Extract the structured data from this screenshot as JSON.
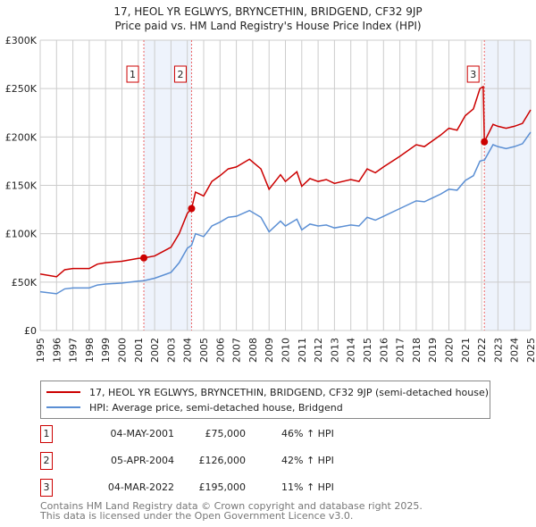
{
  "chart_data": {
    "type": "line",
    "title": "17, HEOL  YR   EGLWYS, BRYNCETHIN, BRIDGEND, CF32 9JP",
    "subtitle": "Price paid vs. HM Land Registry's House Price Index (HPI)",
    "ylim": [
      0,
      300000
    ],
    "xlim": [
      1995,
      2025
    ],
    "yticks": [
      {
        "v": 0,
        "label": "£0"
      },
      {
        "v": 50000,
        "label": "£50K"
      },
      {
        "v": 100000,
        "label": "£100K"
      },
      {
        "v": 150000,
        "label": "£150K"
      },
      {
        "v": 200000,
        "label": "£200K"
      },
      {
        "v": 250000,
        "label": "£250K"
      },
      {
        "v": 300000,
        "label": "£300K"
      }
    ],
    "xticks": [
      "1995",
      "1996",
      "1997",
      "1998",
      "1999",
      "2000",
      "2001",
      "2002",
      "2003",
      "2004",
      "2005",
      "2006",
      "2007",
      "2008",
      "2009",
      "2010",
      "2011",
      "2012",
      "2013",
      "2014",
      "2015",
      "2016",
      "2017",
      "2018",
      "2019",
      "2020",
      "2021",
      "2022",
      "2023",
      "2024",
      "2025"
    ],
    "grid": true,
    "x": [
      1995,
      1996,
      1996.5,
      1997,
      1998,
      1998.5,
      1999,
      2000,
      2001,
      2001.35,
      2002,
      2002.5,
      2003,
      2003.5,
      2004,
      2004.26,
      2004.5,
      2005,
      2005.5,
      2006,
      2006.5,
      2007,
      2007.8,
      2008.5,
      2009,
      2009.7,
      2010,
      2010.7,
      2011,
      2011.5,
      2012,
      2012.5,
      2013,
      2014,
      2014.5,
      2015,
      2015.5,
      2016,
      2017,
      2018,
      2018.5,
      2019,
      2019.5,
      2020,
      2020.5,
      2021,
      2021.5,
      2021.9,
      2022.1,
      2022.17,
      2022.7,
      2023,
      2023.5,
      2024,
      2024.5,
      2025
    ],
    "series": [
      {
        "name": "17, HEOL  YR   EGLWYS, BRYNCETHIN, BRIDGEND, CF32 9JP (semi-detached house)",
        "color": "#cc0000",
        "values": [
          58400,
          55500,
          62800,
          64000,
          64000,
          68600,
          70000,
          71500,
          74500,
          75000,
          77000,
          81500,
          86000,
          100000,
          121000,
          126000,
          143000,
          139000,
          154000,
          160000,
          167000,
          169000,
          177000,
          167000,
          146000,
          161000,
          154000,
          164000,
          149000,
          157000,
          154000,
          156000,
          152000,
          156000,
          154000,
          167000,
          163000,
          169000,
          180000,
          192000,
          190000,
          196000,
          202000,
          209000,
          207000,
          222000,
          229000,
          250000,
          252000,
          195000,
          213000,
          211000,
          209000,
          211000,
          214000,
          228000
        ]
      },
      {
        "name": "HPI: Average price, semi-detached house, Bridgend",
        "color": "#5b8fd4",
        "values": [
          40000,
          38000,
          43000,
          44000,
          44000,
          47000,
          48000,
          49000,
          51000,
          51500,
          54000,
          57000,
          60000,
          70000,
          85000,
          88000,
          100000,
          97000,
          108000,
          112000,
          117000,
          118000,
          124000,
          117000,
          102000,
          113000,
          108000,
          115000,
          104000,
          110000,
          108000,
          109000,
          106000,
          109000,
          108000,
          117000,
          114000,
          118000,
          126000,
          134000,
          133000,
          137000,
          141000,
          146000,
          145000,
          155000,
          160000,
          175000,
          176000,
          176000,
          192000,
          190000,
          188000,
          190000,
          193000,
          205000
        ]
      }
    ],
    "sales": [
      {
        "id": "1",
        "x": 2001.34,
        "value": 75000,
        "date": "04-MAY-2001",
        "price": "£75,000",
        "hpi": "46% ↑ HPI"
      },
      {
        "id": "2",
        "x": 2004.26,
        "value": 126000,
        "date": "05-APR-2004",
        "price": "£126,000",
        "hpi": "42% ↑ HPI"
      },
      {
        "id": "3",
        "x": 2022.17,
        "value": 195000,
        "date": "04-MAR-2022",
        "price": "£195,000",
        "hpi": "11% ↑ HPI"
      }
    ],
    "shaded": [
      [
        2001.34,
        2004.26
      ],
      [
        2022.17,
        2025
      ]
    ]
  },
  "footer": [
    "Contains HM Land Registry data © Crown copyright and database right 2025.",
    "This data is licensed under the Open Government Licence v3.0."
  ]
}
